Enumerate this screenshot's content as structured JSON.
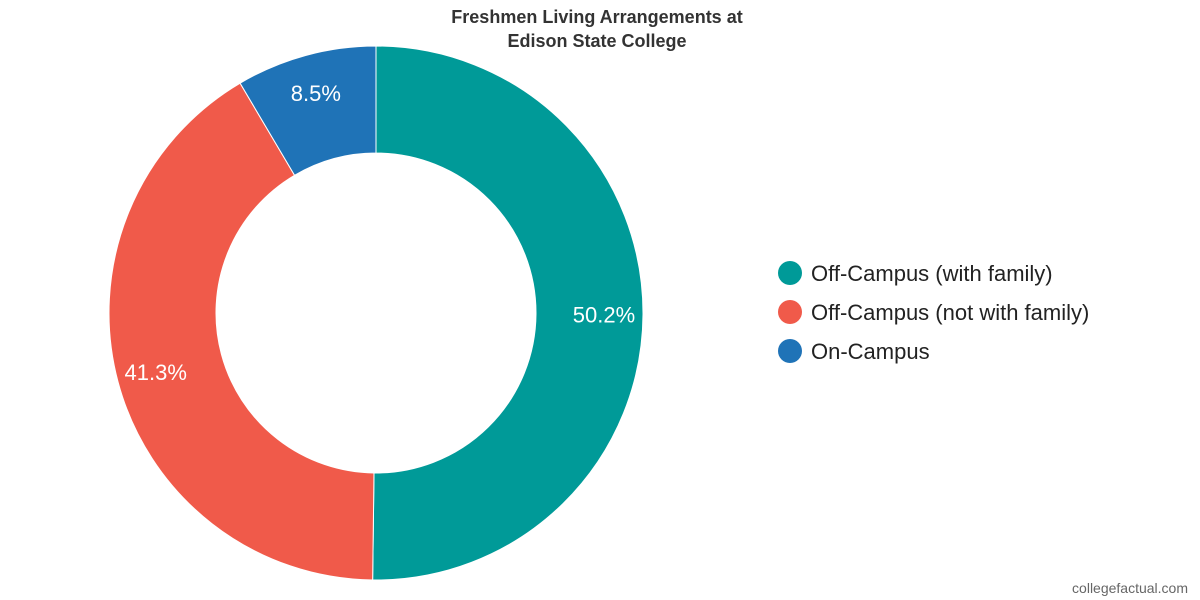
{
  "chart_data": {
    "type": "pie",
    "title": "Freshmen Living Arrangements at Edison State College",
    "title_lines": [
      "Freshmen Living Arrangements at",
      "Edison State College"
    ],
    "series": [
      {
        "name": "Off-Campus (with family)",
        "value": 50.2,
        "label": "50.2%",
        "color": "#009a98"
      },
      {
        "name": "Off-Campus (not with family)",
        "value": 41.3,
        "label": "41.3%",
        "color": "#f05a4a"
      },
      {
        "name": "On-Campus",
        "value": 8.5,
        "label": "8.5%",
        "color": "#1f73b7"
      }
    ],
    "legend_position": "right",
    "donut": true
  },
  "watermark": "collegefactual.com"
}
